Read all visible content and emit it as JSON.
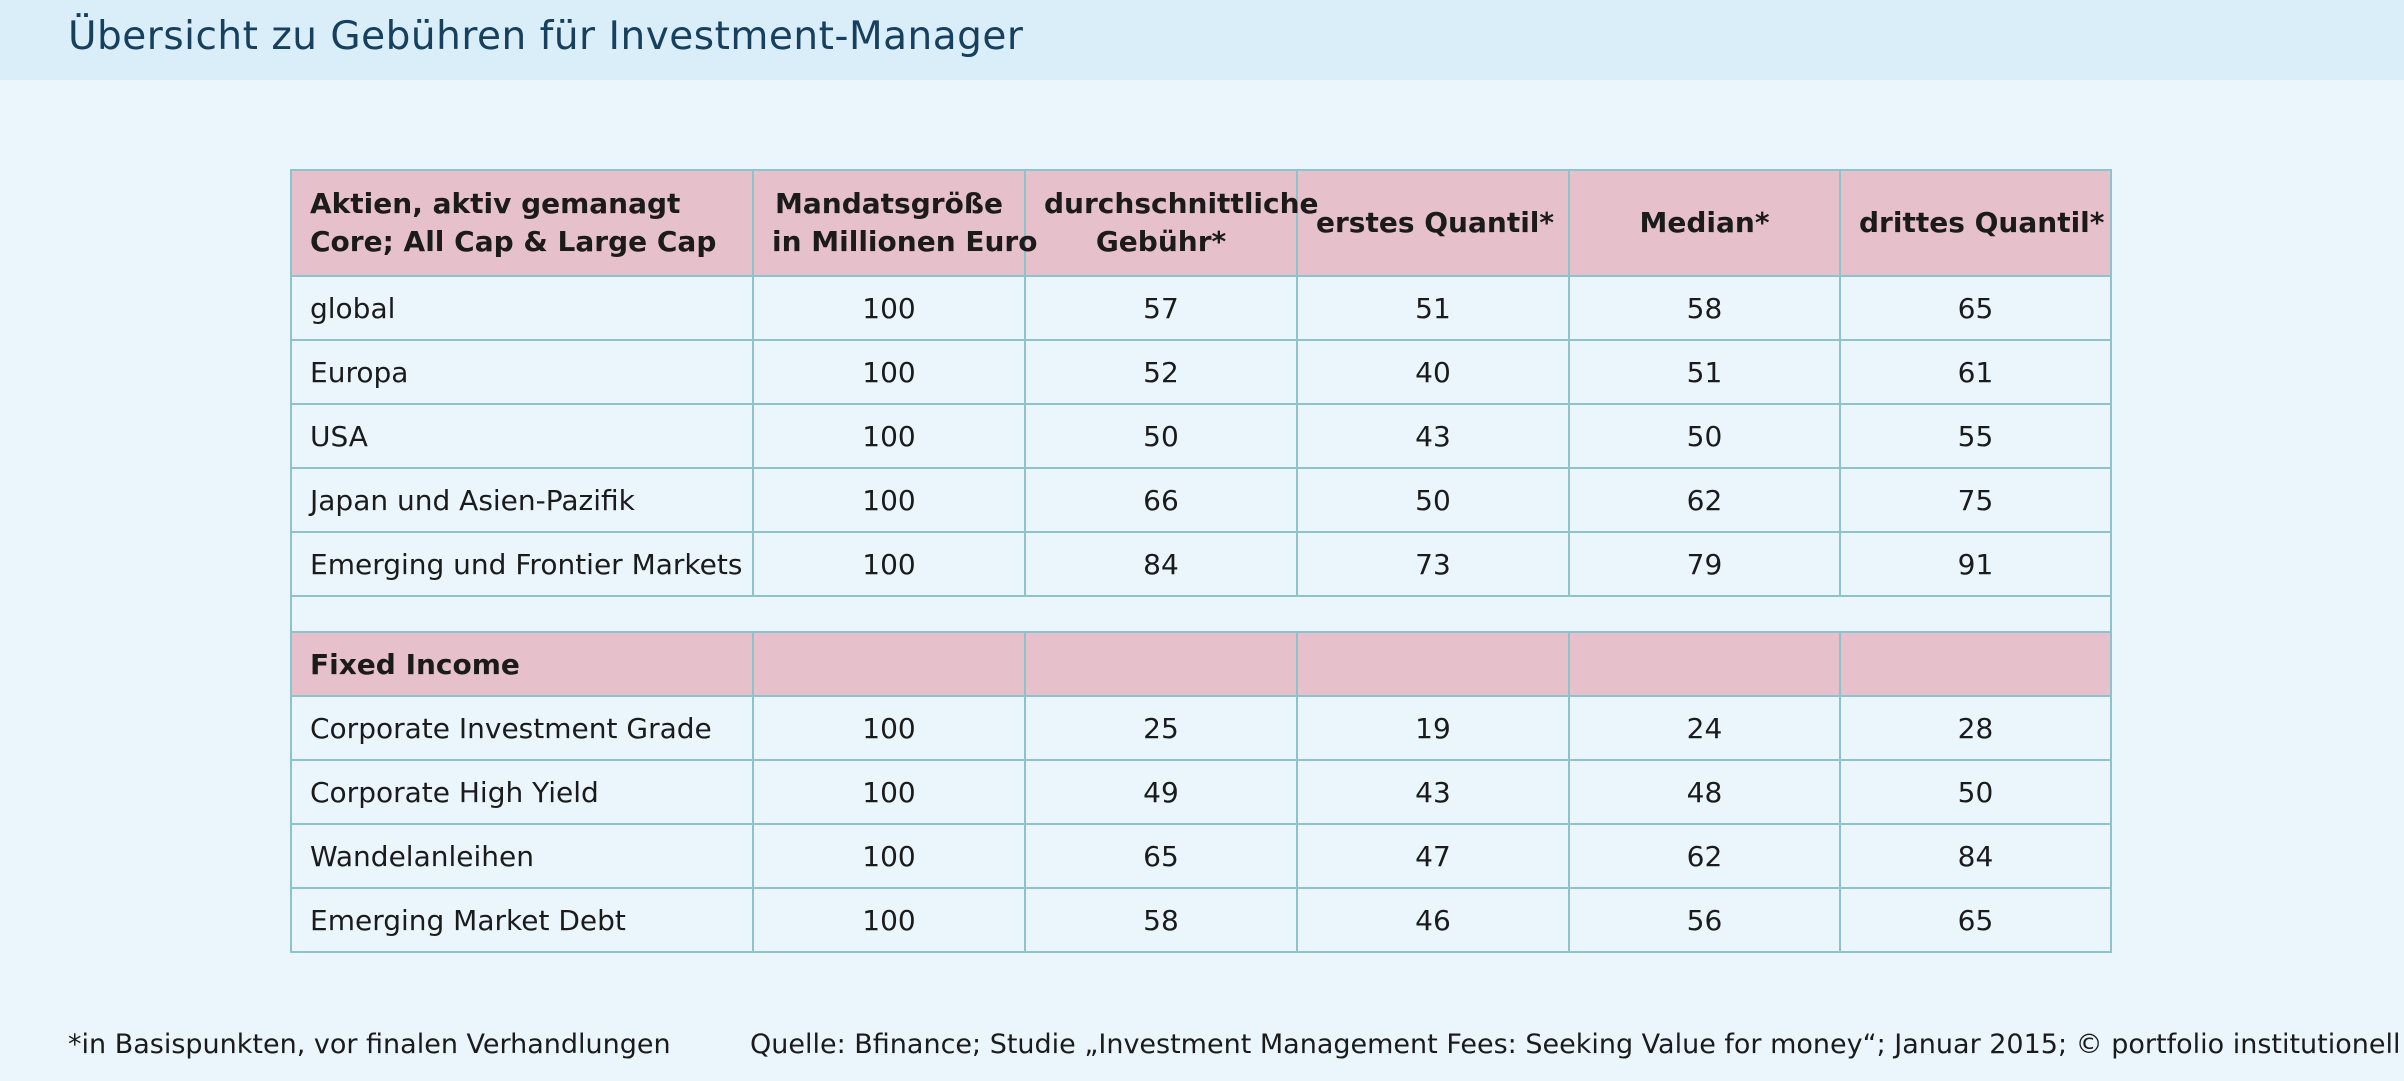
{
  "title": "Übersicht zu Gebühren für Investment-Manager",
  "table": {
    "header": {
      "col1_line1": "Aktien, aktiv gemanagt",
      "col1_line2": "Core; All Cap & Large Cap",
      "col2_line1": "Mandatsgröße",
      "col2_line2": "in Millionen Euro",
      "col3_line1": "durchschnittliche",
      "col3_line2": "Gebühr*",
      "col4": "erstes Quantil*",
      "col5": "Median*",
      "col6": "drittes Quantil*"
    },
    "equity_rows": [
      {
        "label": "global",
        "size": "100",
        "avg": "57",
        "q1": "51",
        "median": "58",
        "q3": "65"
      },
      {
        "label": "Europa",
        "size": "100",
        "avg": "52",
        "q1": "40",
        "median": "51",
        "q3": "61"
      },
      {
        "label": "USA",
        "size": "100",
        "avg": "50",
        "q1": "43",
        "median": "50",
        "q3": "55"
      },
      {
        "label": "Japan und Asien-Pazifik",
        "size": "100",
        "avg": "66",
        "q1": "50",
        "median": "62",
        "q3": "75"
      },
      {
        "label": "Emerging und Frontier Markets",
        "size": "100",
        "avg": "84",
        "q1": "73",
        "median": "79",
        "q3": "91"
      }
    ],
    "fixed_income_label": "Fixed Income",
    "fixed_income_rows": [
      {
        "label": "Corporate Investment Grade",
        "size": "100",
        "avg": "25",
        "q1": "19",
        "median": "24",
        "q3": "28"
      },
      {
        "label": "Corporate High Yield",
        "size": "100",
        "avg": "49",
        "q1": "43",
        "median": "48",
        "q3": "50"
      },
      {
        "label": "Wandelanleihen",
        "size": "100",
        "avg": "65",
        "q1": "47",
        "median": "62",
        "q3": "84"
      },
      {
        "label": "Emerging Market Debt",
        "size": "100",
        "avg": "58",
        "q1": "46",
        "median": "56",
        "q3": "65"
      }
    ]
  },
  "footnote": "*in Basispunkten, vor finalen Verhandlungen",
  "source": "Quelle: Bfinance; Studie „Investment Management Fees: Seeking Value for money“; Januar 2015; © portfolio institutionell"
}
